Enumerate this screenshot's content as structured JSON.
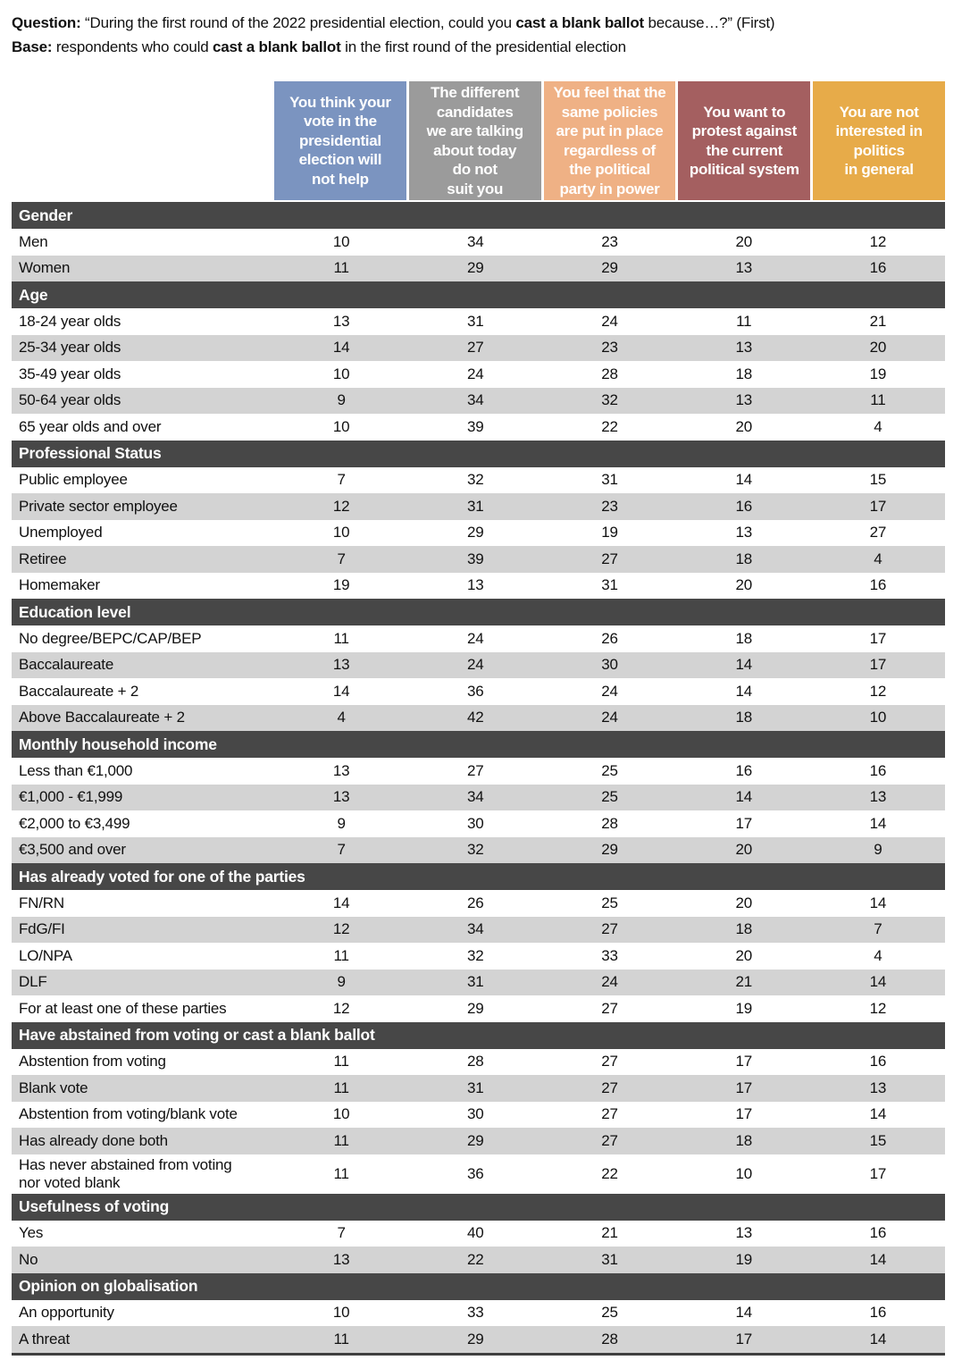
{
  "intro": {
    "question_prefix": "Question:",
    "question_text_1": " “During the first round of the 2022 presidential election, could you ",
    "question_bold": "cast a blank ballot",
    "question_text_2": " because…?” (First)",
    "base_prefix": "Base:",
    "base_text_1": " respondents who could ",
    "base_bold": "cast a blank ballot",
    "base_text_2": " in the first round of the presidential election"
  },
  "colors": {
    "col_blue": "#7b94c0",
    "col_gray": "#9b9b9b",
    "col_peach": "#efb185",
    "col_maroon": "#a45f60",
    "col_gold": "#e7ab49",
    "section_bar": "#474747",
    "alt_row": "#d3d3d3",
    "bottom_rule": "#3f3f3f"
  },
  "chart_data": {
    "type": "table",
    "title": "During the first round of the 2022 presidential election, could you cast a blank ballot because…? (First)",
    "columns": [
      {
        "label": "You think your\nvote in the\npresidential\nelection will\nnot help",
        "color": "#7b94c0"
      },
      {
        "label": "The different\ncandidates\nwe are talking\nabout today\ndo not\nsuit you",
        "color": "#9b9b9b"
      },
      {
        "label": "You feel that the\nsame policies\nare put in place\nregardless of\nthe political\nparty in power",
        "color": "#efb185"
      },
      {
        "label": "You want to\nprotest against\nthe current\npolitical system",
        "color": "#a45f60"
      },
      {
        "label": "You are not\ninterested in\npolitics\nin general",
        "color": "#e7ab49"
      }
    ],
    "sections": [
      {
        "title": "Gender",
        "rows": [
          {
            "label": "Men",
            "values": [
              10,
              34,
              23,
              20,
              12
            ]
          },
          {
            "label": "Women",
            "values": [
              11,
              29,
              29,
              13,
              16
            ]
          }
        ]
      },
      {
        "title": "Age",
        "rows": [
          {
            "label": "18-24 year olds",
            "values": [
              13,
              31,
              24,
              11,
              21
            ]
          },
          {
            "label": "25-34 year olds",
            "values": [
              14,
              27,
              23,
              13,
              20
            ]
          },
          {
            "label": "35-49 year olds",
            "values": [
              10,
              24,
              28,
              18,
              19
            ]
          },
          {
            "label": "50-64 year olds",
            "values": [
              9,
              34,
              32,
              13,
              11
            ]
          },
          {
            "label": "65 year olds and over",
            "values": [
              10,
              39,
              22,
              20,
              4
            ]
          }
        ]
      },
      {
        "title": "Professional Status",
        "rows": [
          {
            "label": "Public employee",
            "values": [
              7,
              32,
              31,
              14,
              15
            ]
          },
          {
            "label": "Private sector employee",
            "values": [
              12,
              31,
              23,
              16,
              17
            ]
          },
          {
            "label": "Unemployed",
            "values": [
              10,
              29,
              19,
              13,
              27
            ]
          },
          {
            "label": "Retiree",
            "values": [
              7,
              39,
              27,
              18,
              4
            ]
          },
          {
            "label": "Homemaker",
            "values": [
              19,
              13,
              31,
              20,
              16
            ]
          }
        ]
      },
      {
        "title": "Education level",
        "rows": [
          {
            "label": "No degree/BEPC/CAP/BEP",
            "values": [
              11,
              24,
              26,
              18,
              17
            ]
          },
          {
            "label": "Baccalaureate",
            "values": [
              13,
              24,
              30,
              14,
              17
            ]
          },
          {
            "label": "Baccalaureate + 2",
            "values": [
              14,
              36,
              24,
              14,
              12
            ]
          },
          {
            "label": "Above Baccalaureate + 2",
            "values": [
              4,
              42,
              24,
              18,
              10
            ]
          }
        ]
      },
      {
        "title": "Monthly household income",
        "rows": [
          {
            "label": "Less than €1,000",
            "values": [
              13,
              27,
              25,
              16,
              16
            ]
          },
          {
            "label": "€1,000 - €1,999",
            "values": [
              13,
              34,
              25,
              14,
              13
            ]
          },
          {
            "label": "€2,000 to €3,499",
            "values": [
              9,
              30,
              28,
              17,
              14
            ]
          },
          {
            "label": "€3,500 and over",
            "values": [
              7,
              32,
              29,
              20,
              9
            ]
          }
        ]
      },
      {
        "title": "Has already voted for one of the parties",
        "rows": [
          {
            "label": "FN/RN",
            "values": [
              14,
              26,
              25,
              20,
              14
            ]
          },
          {
            "label": "FdG/FI",
            "values": [
              12,
              34,
              27,
              18,
              7
            ]
          },
          {
            "label": "LO/NPA",
            "values": [
              11,
              32,
              33,
              20,
              4
            ]
          },
          {
            "label": "DLF",
            "values": [
              9,
              31,
              24,
              21,
              14
            ]
          },
          {
            "label": "For at least one of these parties",
            "values": [
              12,
              29,
              27,
              19,
              12
            ]
          }
        ]
      },
      {
        "title": "Have abstained from voting or cast a blank ballot",
        "rows": [
          {
            "label": "Abstention from voting",
            "values": [
              11,
              28,
              27,
              17,
              16
            ]
          },
          {
            "label": "Blank vote",
            "values": [
              11,
              31,
              27,
              17,
              13
            ]
          },
          {
            "label": "Abstention from voting/blank vote",
            "values": [
              10,
              30,
              27,
              17,
              14
            ]
          },
          {
            "label": "Has already done both",
            "values": [
              11,
              29,
              27,
              18,
              15
            ]
          },
          {
            "label": "Has never abstained from voting\nnor voted blank",
            "values": [
              11,
              36,
              22,
              10,
              17
            ]
          }
        ]
      },
      {
        "title": "Usefulness of voting",
        "rows": [
          {
            "label": "Yes",
            "values": [
              7,
              40,
              21,
              13,
              16
            ]
          },
          {
            "label": "No",
            "values": [
              13,
              22,
              31,
              19,
              14
            ]
          }
        ]
      },
      {
        "title": "Opinion on globalisation",
        "rows": [
          {
            "label": "An opportunity",
            "values": [
              10,
              33,
              25,
              14,
              16
            ]
          },
          {
            "label": "A threat",
            "values": [
              11,
              29,
              28,
              17,
              14
            ]
          }
        ]
      }
    ]
  }
}
